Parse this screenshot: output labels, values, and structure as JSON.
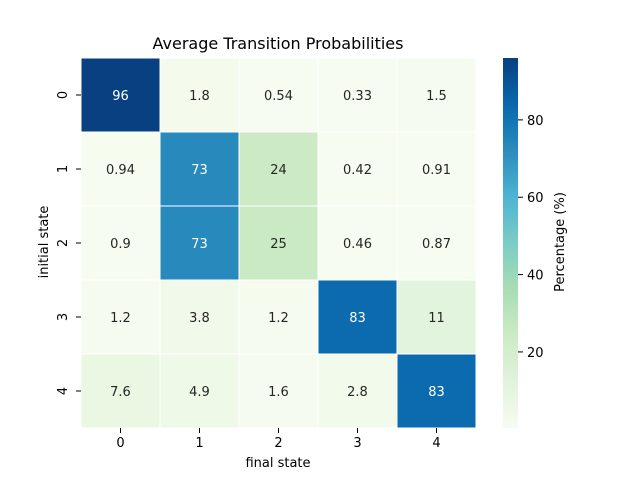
{
  "chart_data": {
    "type": "heatmap",
    "title": "Average Transition Probabilities",
    "xlabel": "final state",
    "ylabel": "initial state",
    "x_categories": [
      "0",
      "1",
      "2",
      "3",
      "4"
    ],
    "y_categories": [
      "0",
      "1",
      "2",
      "3",
      "4"
    ],
    "values": [
      [
        96,
        1.8,
        0.54,
        0.33,
        1.5
      ],
      [
        0.94,
        73,
        24,
        0.42,
        0.91
      ],
      [
        0.9,
        73,
        25,
        0.46,
        0.87
      ],
      [
        1.2,
        3.8,
        1.2,
        83,
        11
      ],
      [
        7.6,
        4.9,
        1.6,
        2.8,
        83
      ]
    ],
    "value_labels": [
      [
        "96",
        "1.8",
        "0.54",
        "0.33",
        "1.5"
      ],
      [
        "0.94",
        "73",
        "24",
        "0.42",
        "0.91"
      ],
      [
        "0.9",
        "73",
        "25",
        "0.46",
        "0.87"
      ],
      [
        "1.2",
        "3.8",
        "1.2",
        "83",
        "11"
      ],
      [
        "7.6",
        "4.9",
        "1.6",
        "2.8",
        "83"
      ]
    ],
    "colorbar": {
      "label": "Percentage (%)",
      "vmin": 0.33,
      "vmax": 96,
      "ticks": [
        20,
        40,
        60,
        80
      ],
      "tick_labels": [
        "20",
        "40",
        "60",
        "80"
      ],
      "colormap": "GnBu",
      "colors": [
        "#f7fcf0",
        "#e0f3db",
        "#ccebc5",
        "#a8ddb5",
        "#7bccc4",
        "#4eb3d3",
        "#2b8cbe",
        "#0868ac",
        "#084081"
      ]
    },
    "grid": false,
    "cell_border_color": "#ffffff"
  }
}
